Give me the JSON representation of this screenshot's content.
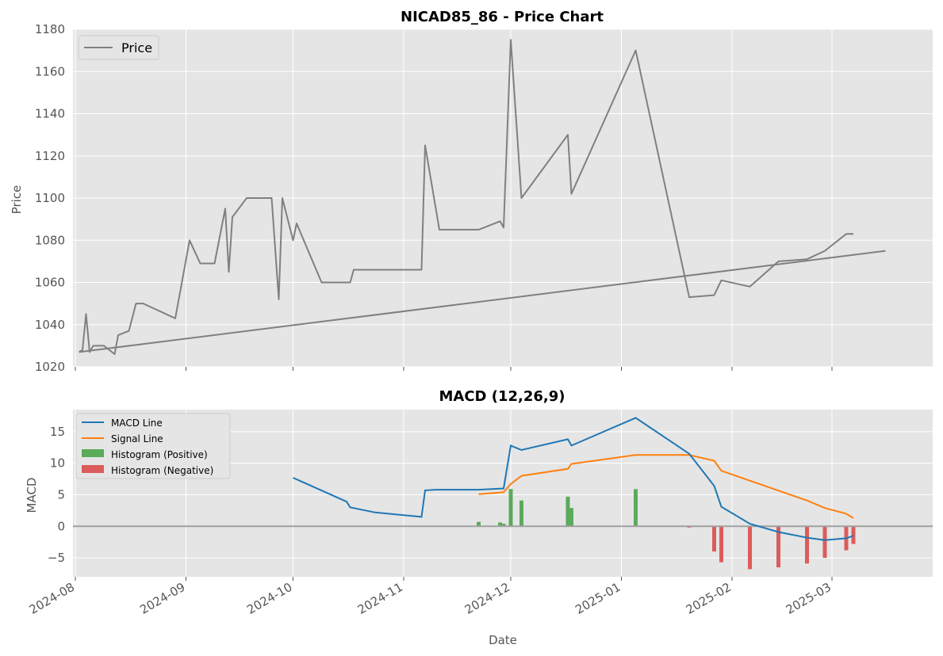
{
  "chart_data": [
    {
      "type": "line",
      "title": "NICAD85_86 - Price Chart",
      "xlabel": "",
      "ylabel": "Price",
      "ylim": [
        1020,
        1180
      ],
      "yticks": [
        1020,
        1040,
        1060,
        1080,
        1100,
        1120,
        1140,
        1160,
        1180
      ],
      "grid": true,
      "legend_position": "top-left",
      "series": [
        {
          "name": "Price",
          "color": "#808080",
          "points": [
            [
              "2024-08-02",
              1027
            ],
            [
              "2024-08-03",
              1028
            ],
            [
              "2024-08-04",
              1045
            ],
            [
              "2024-08-05",
              1027
            ],
            [
              "2024-08-06",
              1030
            ],
            [
              "2024-08-09",
              1030
            ],
            [
              "2024-08-12",
              1026
            ],
            [
              "2024-08-13",
              1035
            ],
            [
              "2024-08-16",
              1037
            ],
            [
              "2024-08-18",
              1050
            ],
            [
              "2024-08-20",
              1050
            ],
            [
              "2024-08-29",
              1043
            ],
            [
              "2024-09-02",
              1080
            ],
            [
              "2024-09-05",
              1069
            ],
            [
              "2024-09-09",
              1069
            ],
            [
              "2024-09-12",
              1095
            ],
            [
              "2024-09-13",
              1065
            ],
            [
              "2024-09-14",
              1091
            ],
            [
              "2024-09-18",
              1100
            ],
            [
              "2024-09-25",
              1100
            ],
            [
              "2024-09-27",
              1052
            ],
            [
              "2024-09-28",
              1100
            ],
            [
              "2024-10-01",
              1080
            ],
            [
              "2024-10-02",
              1088
            ],
            [
              "2024-10-09",
              1060
            ],
            [
              "2024-10-17",
              1060
            ],
            [
              "2024-10-18",
              1066
            ],
            [
              "2024-11-06",
              1066
            ],
            [
              "2024-11-07",
              1125
            ],
            [
              "2024-11-11",
              1085
            ],
            [
              "2024-11-22",
              1085
            ],
            [
              "2024-11-28",
              1089
            ],
            [
              "2024-11-29",
              1086
            ],
            [
              "2024-12-01",
              1175
            ],
            [
              "2024-12-04",
              1100
            ],
            [
              "2024-12-17",
              1130
            ],
            [
              "2024-12-18",
              1102
            ],
            [
              "2025-01-05",
              1170
            ],
            [
              "2025-01-20",
              1053
            ],
            [
              "2025-01-27",
              1054
            ],
            [
              "2025-01-29",
              1061
            ],
            [
              "2025-02-06",
              1058
            ],
            [
              "2025-02-14",
              1070
            ],
            [
              "2025-02-22",
              1071
            ],
            [
              "2025-02-27",
              1075
            ],
            [
              "2025-03-05",
              1083
            ],
            [
              "2025-03-07",
              1083
            ]
          ],
          "trend": [
            [
              "2024-08-02",
              1027
            ],
            [
              "2025-03-16",
              1075
            ]
          ]
        }
      ]
    },
    {
      "type": "line",
      "title": "MACD (12,26,9)",
      "xlabel": "Date",
      "ylabel": "MACD",
      "ylim": [
        -8,
        18.5
      ],
      "yticks": [
        -5,
        0,
        5,
        10,
        15
      ],
      "xticks": [
        "2024-08",
        "2024-09",
        "2024-10",
        "2024-11",
        "2024-12",
        "2025-01",
        "2025-02",
        "2025-03"
      ],
      "grid": true,
      "legend_position": "top-left",
      "zero_line_color": "#a0a0a0",
      "series": [
        {
          "name": "MACD Line",
          "color": "#1f77b4",
          "points": [
            [
              "2024-10-01",
              7.7
            ],
            [
              "2024-10-16",
              3.9
            ],
            [
              "2024-10-17",
              3.0
            ],
            [
              "2024-10-24",
              2.2
            ],
            [
              "2024-11-06",
              1.5
            ],
            [
              "2024-11-07",
              5.7
            ],
            [
              "2024-11-10",
              5.8
            ],
            [
              "2024-11-22",
              5.8
            ],
            [
              "2024-11-29",
              6.0
            ],
            [
              "2024-12-01",
              12.8
            ],
            [
              "2024-12-04",
              12.1
            ],
            [
              "2024-12-17",
              13.8
            ],
            [
              "2024-12-18",
              12.8
            ],
            [
              "2025-01-05",
              17.2
            ],
            [
              "2025-01-20",
              11.5
            ],
            [
              "2025-01-27",
              6.4
            ],
            [
              "2025-01-29",
              3.1
            ],
            [
              "2025-02-06",
              0.4
            ],
            [
              "2025-02-14",
              -0.9
            ],
            [
              "2025-02-22",
              -1.8
            ],
            [
              "2025-02-27",
              -2.2
            ],
            [
              "2025-03-05",
              -1.9
            ],
            [
              "2025-03-07",
              -1.5
            ]
          ]
        },
        {
          "name": "Signal Line",
          "color": "#ff7f0e",
          "points": [
            [
              "2024-11-22",
              5.1
            ],
            [
              "2024-11-29",
              5.4
            ],
            [
              "2024-12-01",
              6.7
            ],
            [
              "2024-12-04",
              8.0
            ],
            [
              "2024-12-17",
              9.1
            ],
            [
              "2024-12-18",
              9.9
            ],
            [
              "2025-01-05",
              11.3
            ],
            [
              "2025-01-20",
              11.3
            ],
            [
              "2025-01-27",
              10.4
            ],
            [
              "2025-01-29",
              8.8
            ],
            [
              "2025-02-22",
              4.1
            ],
            [
              "2025-02-27",
              2.9
            ],
            [
              "2025-03-05",
              2.0
            ],
            [
              "2025-03-07",
              1.3
            ]
          ]
        }
      ],
      "histogram": {
        "positive_name": "Histogram (Positive)",
        "negative_name": "Histogram (Negative)",
        "positive_color": "#5aab5a",
        "negative_color": "#dc5c5c",
        "bars": [
          [
            "2024-11-22",
            0.7
          ],
          [
            "2024-11-28",
            0.6
          ],
          [
            "2024-11-29",
            0.4
          ],
          [
            "2024-12-01",
            5.9
          ],
          [
            "2024-12-04",
            4.1
          ],
          [
            "2024-12-17",
            4.7
          ],
          [
            "2024-12-18",
            2.9
          ],
          [
            "2025-01-05",
            5.9
          ],
          [
            "2025-01-20",
            -0.2
          ],
          [
            "2025-01-27",
            -4.0
          ],
          [
            "2025-01-29",
            -5.7
          ],
          [
            "2025-02-06",
            -6.8
          ],
          [
            "2025-02-14",
            -6.5
          ],
          [
            "2025-02-22",
            -5.9
          ],
          [
            "2025-02-27",
            -5.0
          ],
          [
            "2025-03-05",
            -3.8
          ],
          [
            "2025-03-07",
            -2.8
          ]
        ]
      }
    }
  ]
}
